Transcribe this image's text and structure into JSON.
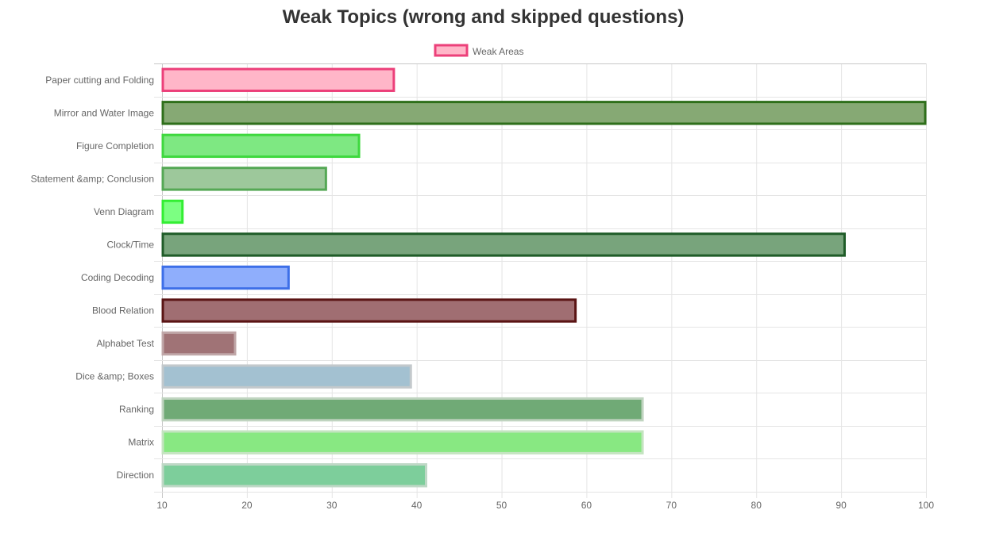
{
  "chart_data": {
    "type": "bar",
    "orientation": "horizontal",
    "title": "Weak Topics (wrong and skipped questions)",
    "legend": {
      "position": "top",
      "label": "Weak Areas",
      "fill": "#ffb6c8",
      "stroke": "#ec407a"
    },
    "xlim": [
      10,
      100
    ],
    "xticks": [
      10,
      20,
      30,
      40,
      50,
      60,
      70,
      80,
      90,
      100
    ],
    "grid": true,
    "categories": [
      "Paper cutting and Folding",
      "Mirror and Water Image",
      "Figure Completion",
      "Statement &amp; Conclusion",
      "Venn Diagram",
      "Clock/Time",
      "Coding Decoding",
      "Blood Relation",
      "Alphabet Test",
      "Dice &amp; Boxes",
      "Ranking",
      "Matrix",
      "Direction"
    ],
    "series": [
      {
        "name": "Weak Areas",
        "values": [
          37.4,
          100,
          33.3,
          29.4,
          12.5,
          90.5,
          25,
          58.8,
          18.7,
          39.4,
          66.7,
          66.7,
          41.2
        ],
        "fill": [
          "#ffb6c8",
          "#86a974",
          "#7ee882",
          "#9dc89b",
          "#7cff82",
          "#78a47c",
          "#8faefc",
          "#a06e72",
          "#a07376",
          "#a3c1d1",
          "#70aa76",
          "#88e882",
          "#7dce9b"
        ],
        "stroke": [
          "#ec407a",
          "#2e6f1a",
          "#3ed83e",
          "#55a855",
          "#33ee33",
          "#1f5c28",
          "#3d6fe8",
          "#5a1414",
          "#c0a7a8",
          "#c3c9cc",
          "#c0d4c0",
          "#c4e4c0",
          "#bfd8c6"
        ]
      }
    ]
  }
}
